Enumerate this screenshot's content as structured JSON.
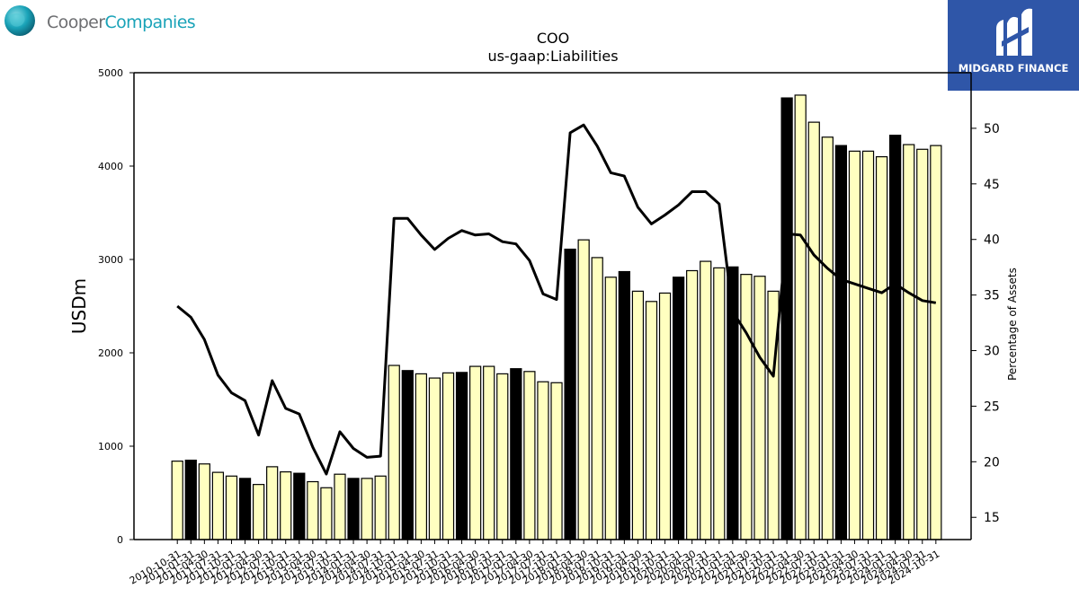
{
  "branding": {
    "company_word1": "Cooper",
    "company_word2": "Companies",
    "company_color_gray": "#6d6e71",
    "company_color_teal": "#1aa3b8",
    "badge_text": "MIDGARD FINANCE",
    "badge_color": "#2f56a8"
  },
  "chart_data": {
    "type": "bar",
    "title": "COO",
    "subtitle": "us-gaap:Liabilities",
    "ylabel": "USDm",
    "y2label": "Percentage of Assets",
    "ylim": [
      0,
      5000
    ],
    "y2lim": [
      13,
      55
    ],
    "yticks": [
      0,
      1000,
      2000,
      3000,
      4000,
      5000
    ],
    "y2ticks": [
      15,
      20,
      25,
      30,
      35,
      40,
      45,
      50
    ],
    "bar_fill_quarterly": "#ffffc0",
    "bar_fill_annual": "#000000",
    "line_color": "#000000",
    "categories": [
      "2010-10-31",
      "2011-01-31",
      "2011-04-30",
      "2011-07-31",
      "2011-10-31",
      "2012-01-31",
      "2012-04-30",
      "2012-07-31",
      "2012-10-31",
      "2013-01-31",
      "2013-04-30",
      "2013-07-31",
      "2013-10-31",
      "2014-01-31",
      "2014-04-30",
      "2014-07-31",
      "2014-10-31",
      "2015-01-31",
      "2015-04-30",
      "2015-07-31",
      "2015-10-31",
      "2016-01-31",
      "2016-04-30",
      "2016-07-31",
      "2016-10-31",
      "2017-01-31",
      "2017-04-30",
      "2017-07-31",
      "2017-10-31",
      "2018-01-31",
      "2018-04-30",
      "2018-07-31",
      "2018-10-31",
      "2019-01-31",
      "2019-04-30",
      "2019-07-31",
      "2019-10-31",
      "2020-01-31",
      "2020-04-30",
      "2020-07-31",
      "2020-10-31",
      "2021-01-31",
      "2021-04-30",
      "2021-07-31",
      "2021-10-31",
      "2022-01-31",
      "2022-04-30",
      "2022-07-31",
      "2022-10-31",
      "2023-01-31",
      "2023-04-30",
      "2023-07-31",
      "2023-10-31",
      "2024-01-31",
      "2024-04-30",
      "2024-07-31",
      "2024-10-31"
    ],
    "series": [
      {
        "type": "bar",
        "values": [
          840,
          850,
          810,
          720,
          680,
          655,
          590,
          780,
          725,
          710,
          620,
          555,
          700,
          655,
          655,
          680,
          1865,
          1810,
          1775,
          1730,
          1785,
          1790,
          1855,
          1855,
          1775,
          1830,
          1800,
          1690,
          1680,
          3110,
          3210,
          3020,
          2810,
          2870,
          2660,
          2550,
          2640,
          2810,
          2880,
          2980,
          2910,
          2920,
          2840,
          2820,
          2660,
          4730,
          4760,
          4470,
          4310,
          4220,
          4160,
          4160,
          4100,
          4330,
          4230,
          4180,
          4220
        ],
        "is_annual": [
          false,
          true,
          false,
          false,
          false,
          true,
          false,
          false,
          false,
          true,
          false,
          false,
          false,
          true,
          false,
          false,
          false,
          true,
          false,
          false,
          false,
          true,
          false,
          false,
          false,
          true,
          false,
          false,
          false,
          true,
          false,
          false,
          false,
          true,
          false,
          false,
          false,
          true,
          false,
          false,
          false,
          true,
          false,
          false,
          false,
          true,
          false,
          false,
          false,
          true,
          false,
          false,
          false,
          true,
          false,
          false,
          false
        ]
      },
      {
        "type": "line",
        "axis": "right",
        "values": [
          34.0,
          33.0,
          31.0,
          27.8,
          26.2,
          25.5,
          22.4,
          27.3,
          24.8,
          24.3,
          21.3,
          18.9,
          22.7,
          21.2,
          20.4,
          20.5,
          41.9,
          41.9,
          40.4,
          39.1,
          40.1,
          40.8,
          40.4,
          40.5,
          39.8,
          39.6,
          38.1,
          35.1,
          34.6,
          49.6,
          50.3,
          48.4,
          46.0,
          45.7,
          42.9,
          41.4,
          42.2,
          43.1,
          44.3,
          44.3,
          43.2,
          33.5,
          31.6,
          29.4,
          27.7,
          40.5,
          40.4,
          38.6,
          37.4,
          36.4,
          36.0,
          35.6,
          35.2,
          36.0,
          35.2,
          34.5,
          34.3
        ]
      }
    ]
  }
}
